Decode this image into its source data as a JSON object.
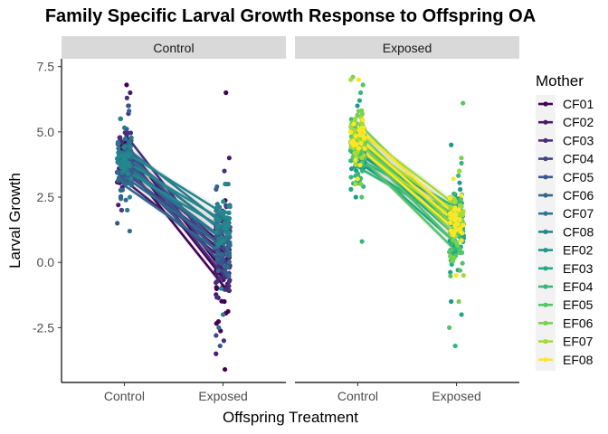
{
  "chart_data": {
    "type": "scatter",
    "title": "Family Specific Larval Growth Response to Offspring OA",
    "xlabel": "Offspring Treatment",
    "ylabel": "Larval Growth",
    "facet_label": "",
    "facets": [
      "Control",
      "Exposed"
    ],
    "categories": [
      "Control",
      "Exposed"
    ],
    "ylim": [
      -4.6,
      7.8
    ],
    "yticks": [
      -2.5,
      0.0,
      2.5,
      5.0,
      7.5
    ],
    "ytick_labels": [
      "-2.5",
      "0.0",
      "2.5",
      "5.0",
      "7.5"
    ],
    "grid": false,
    "legend": {
      "title": "Mother",
      "placement": "right"
    },
    "series": [
      {
        "name": "CF01",
        "color": "#440154",
        "facet": "Control",
        "means": [
          4.2,
          -0.6
        ],
        "range_control": [
          2.0,
          6.8
        ],
        "range_exposed": [
          -4.1,
          6.5
        ]
      },
      {
        "name": "CF02",
        "color": "#481A6C",
        "facet": "Control",
        "means": [
          3.5,
          0.4
        ],
        "range_control": [
          2.2,
          6.5
        ],
        "range_exposed": [
          -3.5,
          4.0
        ]
      },
      {
        "name": "CF03",
        "color": "#472F7D",
        "facet": "Control",
        "means": [
          4.6,
          -0.2
        ],
        "range_control": [
          2.5,
          6.3
        ],
        "range_exposed": [
          -3.0,
          3.5
        ]
      },
      {
        "name": "CF04",
        "color": "#414487",
        "facet": "Control",
        "means": [
          3.8,
          0.9
        ],
        "range_control": [
          2.0,
          6.0
        ],
        "range_exposed": [
          -2.8,
          3.0
        ]
      },
      {
        "name": "CF05",
        "color": "#39568C",
        "facet": "Control",
        "means": [
          4.0,
          0.2
        ],
        "range_control": [
          1.5,
          6.0
        ],
        "range_exposed": [
          -3.2,
          2.8
        ]
      },
      {
        "name": "CF06",
        "color": "#31688E",
        "facet": "Control",
        "means": [
          3.3,
          0.6
        ],
        "range_control": [
          1.2,
          5.8
        ],
        "range_exposed": [
          -2.5,
          2.9
        ]
      },
      {
        "name": "CF07",
        "color": "#2A788E",
        "facet": "Control",
        "means": [
          4.1,
          1.2
        ],
        "range_control": [
          2.0,
          5.5
        ],
        "range_exposed": [
          -2.0,
          3.0
        ]
      },
      {
        "name": "CF08",
        "color": "#23888E",
        "facet": "Control",
        "means": [
          3.9,
          1.6
        ],
        "range_control": [
          2.5,
          5.5
        ],
        "range_exposed": [
          -1.0,
          3.0
        ]
      },
      {
        "name": "EF02",
        "color": "#1F988B",
        "facet": "Exposed",
        "means": [
          4.2,
          1.6
        ],
        "range_control": [
          2.5,
          6.0
        ],
        "range_exposed": [
          -1.5,
          4.5
        ]
      },
      {
        "name": "EF03",
        "color": "#22A884",
        "facet": "Exposed",
        "means": [
          4.4,
          1.0
        ],
        "range_control": [
          2.8,
          6.2
        ],
        "range_exposed": [
          -2.0,
          3.5
        ]
      },
      {
        "name": "EF04",
        "color": "#35B779",
        "facet": "Exposed",
        "means": [
          4.0,
          1.8
        ],
        "range_control": [
          0.8,
          6.5
        ],
        "range_exposed": [
          -3.2,
          3.8
        ]
      },
      {
        "name": "EF05",
        "color": "#54C568",
        "facet": "Exposed",
        "means": [
          4.5,
          0.7
        ],
        "range_control": [
          2.5,
          6.8
        ],
        "range_exposed": [
          -2.5,
          6.1
        ]
      },
      {
        "name": "EF06",
        "color": "#7AD151",
        "facet": "Exposed",
        "means": [
          5.0,
          1.3
        ],
        "range_control": [
          3.0,
          7.1
        ],
        "range_exposed": [
          -1.5,
          4.0
        ]
      },
      {
        "name": "EF07",
        "color": "#A5DB36",
        "facet": "Exposed",
        "means": [
          4.7,
          1.9
        ],
        "range_control": [
          3.0,
          7.0
        ],
        "range_exposed": [
          -0.5,
          3.5
        ]
      },
      {
        "name": "EF08",
        "color": "#FDE725",
        "facet": "Exposed",
        "means": [
          4.8,
          1.5
        ],
        "range_control": [
          3.2,
          7.0
        ],
        "range_exposed": [
          -0.5,
          3.2
        ]
      }
    ]
  }
}
